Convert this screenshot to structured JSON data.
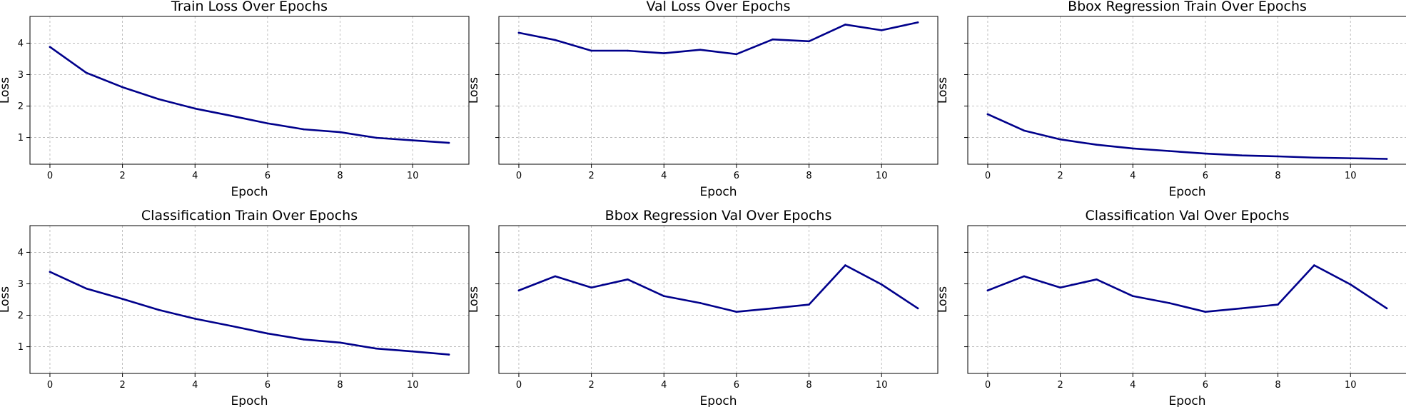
{
  "figure": {
    "line_color": "#00008b",
    "grid_color": "#b0b0b0",
    "grid": true,
    "sharey": true
  },
  "chart_data": [
    {
      "type": "line",
      "title": "Train Loss Over Epochs",
      "xlabel": "Epoch",
      "ylabel": "Loss",
      "xlim": [
        -0.55,
        11.55
      ],
      "ylim": [
        0.15,
        4.85
      ],
      "xticks": [
        0,
        2,
        4,
        6,
        8,
        10
      ],
      "yticks": [
        1,
        2,
        3,
        4
      ],
      "x": [
        0,
        1,
        2,
        3,
        4,
        5,
        6,
        7,
        8,
        9,
        10,
        11
      ],
      "values": [
        3.88,
        3.06,
        2.6,
        2.22,
        1.92,
        1.69,
        1.45,
        1.26,
        1.17,
        0.99,
        0.91,
        0.83
      ]
    },
    {
      "type": "line",
      "title": "Val Loss Over Epochs",
      "xlabel": "Epoch",
      "ylabel": "Loss",
      "xlim": [
        -0.55,
        11.55
      ],
      "ylim": [
        0.15,
        4.85
      ],
      "xticks": [
        0,
        2,
        4,
        6,
        8,
        10
      ],
      "yticks": [
        1,
        2,
        3,
        4
      ],
      "x": [
        0,
        1,
        2,
        3,
        4,
        5,
        6,
        7,
        8,
        9,
        10,
        11
      ],
      "values": [
        4.33,
        4.1,
        3.76,
        3.76,
        3.68,
        3.79,
        3.65,
        4.12,
        4.06,
        4.59,
        4.41,
        4.66
      ]
    },
    {
      "type": "line",
      "title": "Bbox Regression Train Over Epochs",
      "xlabel": "Epoch",
      "ylabel": "Loss",
      "xlim": [
        -0.55,
        11.55
      ],
      "ylim": [
        0.15,
        4.85
      ],
      "xticks": [
        0,
        2,
        4,
        6,
        8,
        10
      ],
      "yticks": [
        1,
        2,
        3,
        4
      ],
      "x": [
        0,
        1,
        2,
        3,
        4,
        5,
        6,
        7,
        8,
        9,
        10,
        11
      ],
      "values": [
        1.74,
        1.22,
        0.94,
        0.77,
        0.65,
        0.57,
        0.49,
        0.43,
        0.4,
        0.36,
        0.34,
        0.32
      ]
    },
    {
      "type": "line",
      "title": "Classification Train Over Epochs",
      "xlabel": "Epoch",
      "ylabel": "Loss",
      "xlim": [
        -0.55,
        11.55
      ],
      "ylim": [
        0.15,
        4.85
      ],
      "xticks": [
        0,
        2,
        4,
        6,
        8,
        10
      ],
      "yticks": [
        1,
        2,
        3,
        4
      ],
      "x": [
        0,
        1,
        2,
        3,
        4,
        5,
        6,
        7,
        8,
        9,
        10,
        11
      ],
      "values": [
        3.38,
        2.85,
        2.52,
        2.17,
        1.89,
        1.66,
        1.42,
        1.23,
        1.13,
        0.94,
        0.85,
        0.75
      ]
    },
    {
      "type": "line",
      "title": "Bbox Regression Val Over Epochs",
      "xlabel": "Epoch",
      "ylabel": "Loss",
      "xlim": [
        -0.55,
        11.55
      ],
      "ylim": [
        0.15,
        4.85
      ],
      "xticks": [
        0,
        2,
        4,
        6,
        8,
        10
      ],
      "yticks": [
        1,
        2,
        3,
        4
      ],
      "x": [
        0,
        1,
        2,
        3,
        4,
        5,
        6,
        7,
        8,
        9,
        10,
        11
      ],
      "values": [
        2.79,
        3.24,
        2.88,
        3.14,
        2.61,
        2.39,
        2.11,
        2.22,
        2.34,
        3.59,
        2.98,
        2.22
      ]
    },
    {
      "type": "line",
      "title": "Classification Val Over Epochs",
      "xlabel": "Epoch",
      "ylabel": "Loss",
      "xlim": [
        -0.55,
        11.55
      ],
      "ylim": [
        0.15,
        4.85
      ],
      "xticks": [
        0,
        2,
        4,
        6,
        8,
        10
      ],
      "yticks": [
        1,
        2,
        3,
        4
      ],
      "x": [
        0,
        1,
        2,
        3,
        4,
        5,
        6,
        7,
        8,
        9,
        10,
        11
      ],
      "values": [
        2.79,
        3.24,
        2.88,
        3.14,
        2.61,
        2.39,
        2.11,
        2.22,
        2.34,
        3.59,
        2.98,
        2.22
      ]
    }
  ]
}
